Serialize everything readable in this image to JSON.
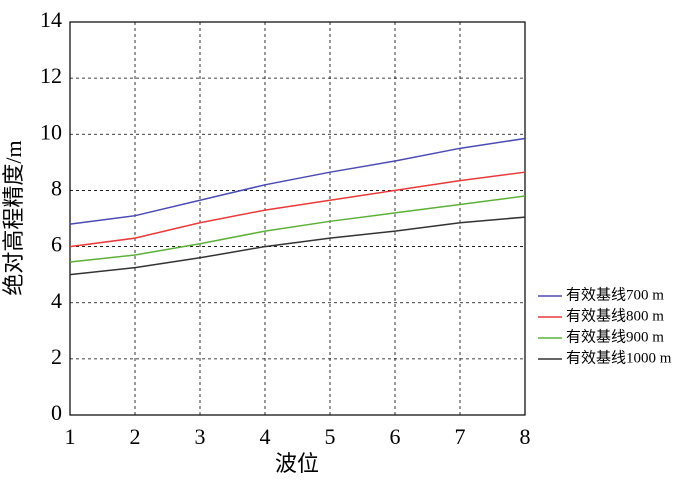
{
  "chart_data": {
    "type": "line",
    "x_label": "波位",
    "y_label": "绝对高程精度/m",
    "x": [
      1,
      2,
      3,
      4,
      5,
      6,
      7,
      8
    ],
    "series": [
      {
        "name": "有效基线700 m",
        "color": "#4b4bb4",
        "values": [
          6.8,
          7.1,
          7.65,
          8.2,
          8.65,
          9.05,
          9.5,
          9.85
        ]
      },
      {
        "name": "有效基线800 m",
        "color": "#e83a3a",
        "values": [
          6.0,
          6.3,
          6.85,
          7.3,
          7.65,
          8.0,
          8.35,
          8.65
        ]
      },
      {
        "name": "有效基线900 m",
        "color": "#5cb038",
        "values": [
          5.45,
          5.7,
          6.1,
          6.55,
          6.9,
          7.2,
          7.5,
          7.8
        ]
      },
      {
        "name": "有效基线1000 m",
        "color": "#333333",
        "values": [
          5.0,
          5.25,
          5.6,
          6.0,
          6.3,
          6.55,
          6.85,
          7.05
        ]
      }
    ],
    "xlim": [
      1,
      8
    ],
    "ylim": [
      0,
      14
    ],
    "xticks": [
      1,
      2,
      3,
      4,
      5,
      6,
      7,
      8
    ],
    "yticks": [
      0,
      2,
      4,
      6,
      8,
      10,
      12,
      14
    ],
    "grid": true,
    "legend": "right"
  }
}
